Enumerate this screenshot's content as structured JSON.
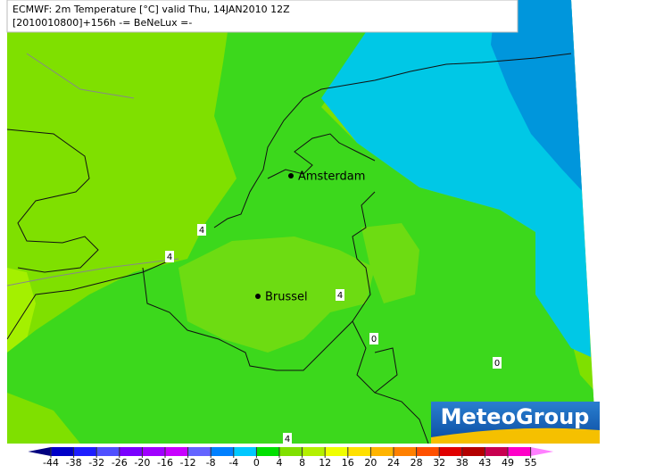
{
  "header": {
    "line1": "ECMWF: 2m Temperature [°C] valid Thu, 14JAN2010 12Z",
    "line2": "[2010010800]+156h -= BeNeLux =-"
  },
  "cities": [
    "Amsterdam",
    "Brussel"
  ],
  "contour_labels": [
    4,
    4,
    4,
    4,
    0,
    0
  ],
  "colorbar": {
    "ticks": [
      -44,
      -38,
      -32,
      -26,
      -20,
      -16,
      -12,
      -8,
      -4,
      0,
      4,
      8,
      12,
      16,
      20,
      24,
      28,
      32,
      38,
      43,
      49,
      55
    ],
    "colors": [
      "#000080",
      "#0000c8",
      "#1e1eff",
      "#5050ff",
      "#7a00ff",
      "#a000ff",
      "#c800ff",
      "#6464ff",
      "#0080ff",
      "#00c8ff",
      "#00e000",
      "#80e000",
      "#b4f000",
      "#f0ff00",
      "#ffe000",
      "#ffb400",
      "#ff8000",
      "#ff5000",
      "#e00000",
      "#b40000",
      "#c80050",
      "#ff00c8",
      "#ff80ff"
    ]
  },
  "logo": "MeteoGroup"
}
